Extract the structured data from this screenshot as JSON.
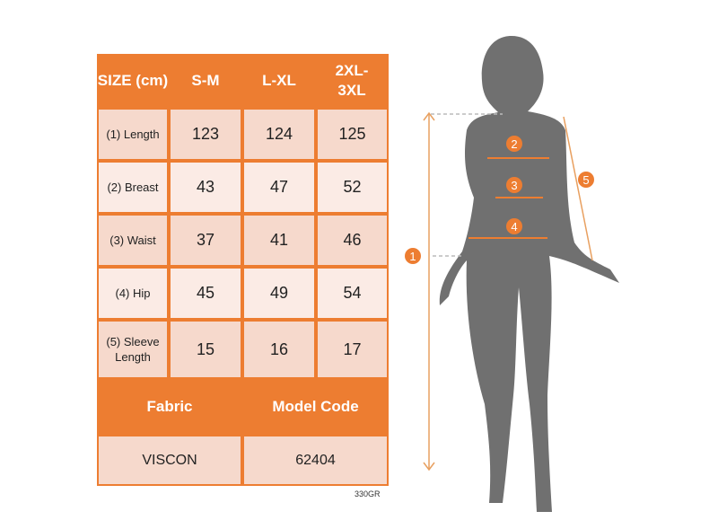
{
  "table": {
    "header": [
      "SIZE (cm)",
      "S-M",
      "L-XL",
      "2XL-3XL"
    ],
    "rows": [
      {
        "label": "(1) Length",
        "values": [
          "123",
          "124",
          "125"
        ]
      },
      {
        "label": "(2) Breast",
        "values": [
          "43",
          "47",
          "52"
        ]
      },
      {
        "label": "(3) Waist",
        "values": [
          "37",
          "41",
          "46"
        ]
      },
      {
        "label": "(4) Hip",
        "values": [
          "45",
          "49",
          "54"
        ]
      },
      {
        "label": "(5) Sleeve Length",
        "values": [
          "15",
          "16",
          "17"
        ]
      }
    ],
    "footer_headers": [
      "Fabric",
      "Model Code"
    ],
    "footer_values": [
      "VISCON",
      "62404"
    ]
  },
  "code": "330GR",
  "markers": [
    "1",
    "2",
    "3",
    "4",
    "5"
  ],
  "colors": {
    "accent": "#ED7D31",
    "cell": "#F6D9CC",
    "cell_alt": "#FBEBE5",
    "silhouette": "#707070"
  }
}
